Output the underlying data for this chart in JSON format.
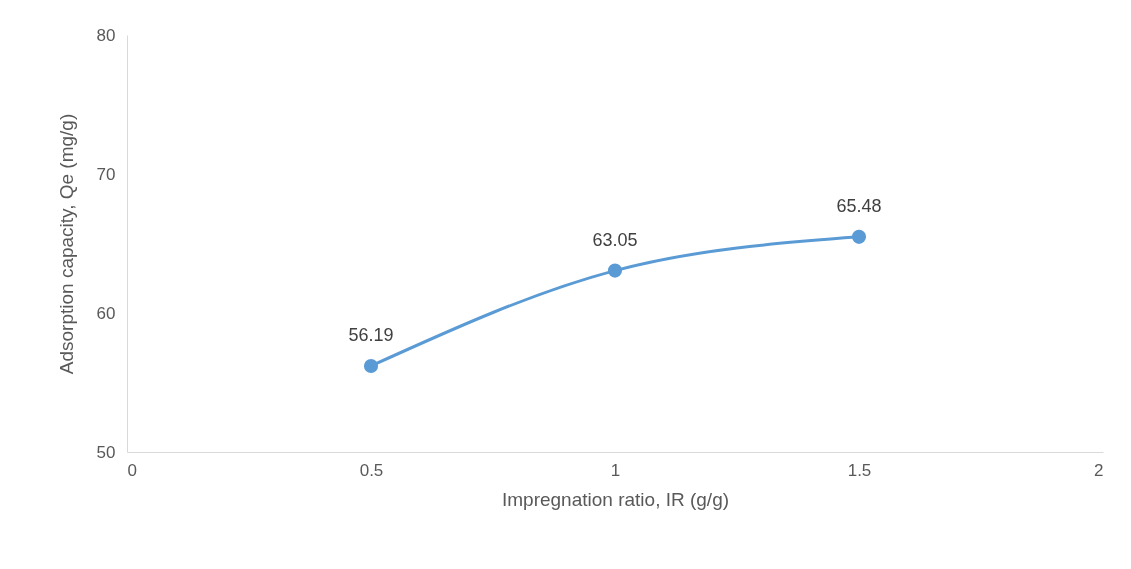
{
  "chart_data": {
    "type": "line",
    "xlabel": "Impregnation ratio, IR (g/g)",
    "ylabel": "Adsorption capacity, Qe (mg/g)",
    "x": [
      0.5,
      1,
      1.5
    ],
    "series": [
      {
        "color": "#5b9bd5",
        "values": [
          56.19,
          63.05,
          65.48
        ]
      }
    ],
    "xlim": [
      0,
      2
    ],
    "xticks": [
      0,
      0.5,
      1,
      1.5,
      2
    ],
    "ylim": [
      50,
      80
    ],
    "yticks": [
      50,
      60,
      70,
      80
    ],
    "data_labels": true,
    "marker": "circle",
    "line_style": "solid",
    "grid": false
  }
}
